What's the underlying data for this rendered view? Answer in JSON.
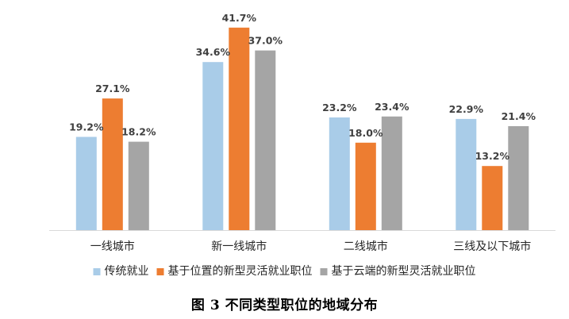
{
  "caption": "图 3  不同类型职位的地域分布",
  "chart_data": {
    "type": "bar",
    "categories": [
      "一线城市",
      "新一线城市",
      "二线城市",
      "三线及以下城市"
    ],
    "series": [
      {
        "name": "传统就业",
        "color": "#A9CCE8",
        "values": [
          19.2,
          34.6,
          23.2,
          22.9
        ],
        "labels": [
          "19.2%",
          "34.6%",
          "23.2%",
          "22.9%"
        ]
      },
      {
        "name": "基于位置的新型灵活就业职位",
        "color": "#ED7D31",
        "values": [
          27.1,
          41.7,
          18.0,
          13.2
        ],
        "labels": [
          "27.1%",
          "41.7%",
          "18.0%",
          "13.2%"
        ]
      },
      {
        "name": "基于云端的新型灵活就业职位",
        "color": "#A5A5A5",
        "values": [
          18.2,
          37.0,
          23.4,
          21.4
        ],
        "labels": [
          "18.2%",
          "37.0%",
          "23.4%",
          "21.4%"
        ]
      }
    ],
    "ylim": [
      0,
      45
    ],
    "axis_color": "#D9D9D9",
    "grid": false,
    "legend_position": "bottom"
  }
}
